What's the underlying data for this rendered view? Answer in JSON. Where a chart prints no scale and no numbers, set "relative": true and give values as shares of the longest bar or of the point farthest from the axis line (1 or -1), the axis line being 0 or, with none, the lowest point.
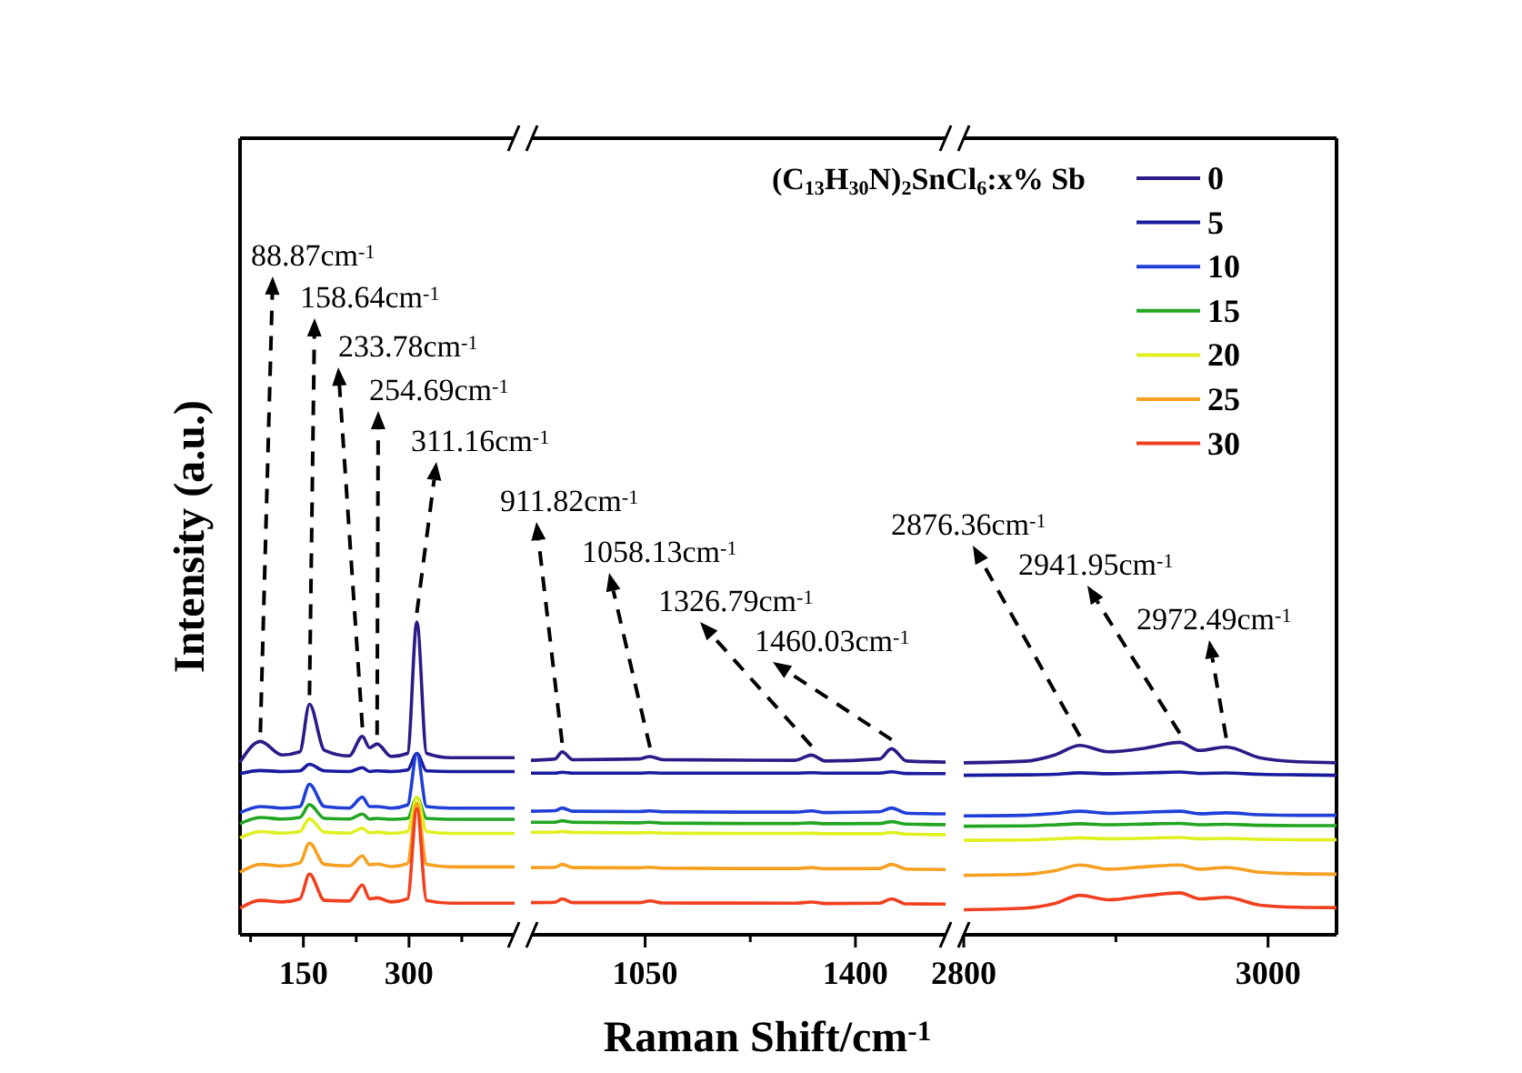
{
  "chart_data": [
    {
      "type": "line",
      "relative": true,
      "ylabel": "Intensity (a.u.)",
      "xlim": [
        60,
        450
      ],
      "xticks": [
        {
          "value": 75,
          "label": null
        },
        150,
        {
          "value": 225,
          "label": null
        },
        300,
        {
          "value": 375,
          "label": null
        }
      ],
      "x": [
        60,
        88.87,
        120,
        145,
        158.64,
        180,
        215,
        233.78,
        244,
        254.69,
        275,
        298,
        311.16,
        325,
        360,
        450
      ],
      "series": [
        {
          "color": "#2e1a87",
          "values": [
            0.552,
            0.618,
            0.575,
            0.585,
            0.737,
            0.59,
            0.572,
            0.634,
            0.598,
            0.61,
            0.57,
            0.58,
            1.0,
            0.58,
            0.566,
            0.566
          ]
        },
        {
          "color": "#1a1aa0",
          "values": [
            0.515,
            0.525,
            0.522,
            0.524,
            0.545,
            0.524,
            0.522,
            0.534,
            0.522,
            0.524,
            0.522,
            0.527,
            0.58,
            0.524,
            0.522,
            0.522
          ]
        },
        {
          "color": "#1f3fd6",
          "values": [
            0.39,
            0.41,
            0.405,
            0.41,
            0.481,
            0.41,
            0.405,
            0.44,
            0.41,
            0.41,
            0.405,
            0.415,
            0.579,
            0.41,
            0.405,
            0.405
          ]
        },
        {
          "color": "#22a622",
          "values": [
            0.355,
            0.375,
            0.37,
            0.375,
            0.416,
            0.372,
            0.37,
            0.386,
            0.37,
            0.372,
            0.369,
            0.372,
            0.439,
            0.372,
            0.369,
            0.369
          ]
        },
        {
          "color": "#e0f020",
          "values": [
            0.31,
            0.33,
            0.325,
            0.33,
            0.371,
            0.328,
            0.325,
            0.341,
            0.326,
            0.328,
            0.324,
            0.33,
            0.44,
            0.33,
            0.324,
            0.324
          ]
        },
        {
          "color": "#f5a020",
          "values": [
            0.2,
            0.225,
            0.22,
            0.23,
            0.293,
            0.225,
            0.22,
            0.252,
            0.224,
            0.226,
            0.218,
            0.228,
            0.42,
            0.225,
            0.217,
            0.217
          ]
        },
        {
          "color": "#f04020",
          "values": [
            0.085,
            0.11,
            0.105,
            0.115,
            0.194,
            0.11,
            0.108,
            0.159,
            0.115,
            0.118,
            0.105,
            0.115,
            0.403,
            0.11,
            0.101,
            0.101
          ]
        }
      ],
      "annotations": [
        {
          "text": "88.87cm$^{-1}$",
          "x": 88.87,
          "y": 0.618
        },
        {
          "text": "158.64cm$^{-1}$",
          "x": 158.64,
          "y": 0.737
        },
        {
          "text": "233.78cm$^{-1}$",
          "x": 233.78,
          "y": 0.634
        },
        {
          "text": "254.69cm$^{-1}$",
          "x": 254.69,
          "y": 0.61
        },
        {
          "text": "311.16cm$^{-1}$",
          "x": 311.16,
          "y": 1.0
        }
      ]
    },
    {
      "type": "line",
      "relative": true,
      "xlabel": "Raman Shift/cm$^{-1}$",
      "xlim": [
        860,
        1550
      ],
      "xticks": [
        1050,
        {
          "value": 1225,
          "label": null
        },
        1400
      ],
      "x": [
        860,
        900,
        911.82,
        930,
        1040,
        1058.13,
        1080,
        1300,
        1326.79,
        1350,
        1440,
        1460.03,
        1485,
        1550
      ],
      "series": [
        {
          "color": "#2e1a87",
          "values": [
            0.938,
            0.945,
            0.983,
            0.941,
            0.945,
            0.958,
            0.941,
            0.938,
            0.966,
            0.934,
            0.945,
            1.0,
            0.934,
            0.928
          ]
        },
        {
          "color": "#1a1aa0",
          "values": [
            0.869,
            0.869,
            0.874,
            0.869,
            0.869,
            0.871,
            0.869,
            0.869,
            0.871,
            0.869,
            0.869,
            0.876,
            0.867,
            0.866
          ]
        },
        {
          "color": "#1f3fd6",
          "values": [
            0.664,
            0.667,
            0.681,
            0.664,
            0.662,
            0.666,
            0.661,
            0.659,
            0.666,
            0.657,
            0.661,
            0.681,
            0.654,
            0.65
          ]
        },
        {
          "color": "#22a622",
          "values": [
            0.605,
            0.605,
            0.613,
            0.605,
            0.602,
            0.605,
            0.6,
            0.598,
            0.602,
            0.597,
            0.598,
            0.608,
            0.595,
            0.592
          ]
        },
        {
          "color": "#e0f020",
          "values": [
            0.551,
            0.551,
            0.556,
            0.55,
            0.548,
            0.55,
            0.546,
            0.545,
            0.546,
            0.543,
            0.543,
            0.55,
            0.541,
            0.538
          ]
        },
        {
          "color": "#f5a020",
          "values": [
            0.361,
            0.363,
            0.378,
            0.361,
            0.36,
            0.363,
            0.358,
            0.356,
            0.361,
            0.355,
            0.356,
            0.378,
            0.353,
            0.351
          ]
        },
        {
          "color": "#f04020",
          "values": [
            0.173,
            0.175,
            0.193,
            0.173,
            0.173,
            0.182,
            0.171,
            0.17,
            0.176,
            0.168,
            0.17,
            0.193,
            0.166,
            0.165
          ]
        }
      ],
      "annotations": [
        {
          "text": "911.82cm$^{-1}$",
          "x": 911.82,
          "y": 0.983
        },
        {
          "text": "1058.13cm$^{-1}$",
          "x": 1058.13,
          "y": 0.958
        },
        {
          "text": "1326.79cm$^{-1}$",
          "x": 1326.79,
          "y": 0.966
        },
        {
          "text": "1460.03cm$^{-1}$",
          "x": 1460.03,
          "y": 1.0
        }
      ]
    },
    {
      "type": "line",
      "relative": true,
      "legend": "top right",
      "legend_title": "(C$_{13}$H$_{30}$N)$_{2}$SnCl$_{6}$:x% Sb",
      "xlim": [
        2800,
        3045
      ],
      "xticks": [
        2800,
        {
          "value": 2900,
          "label": null
        },
        3000
      ],
      "x": [
        2800,
        2840,
        2860,
        2876.36,
        2895,
        2920,
        2941.95,
        2955,
        2972.49,
        2995,
        3020,
        3045
      ],
      "series": [
        {
          "name": "0",
          "color": "#2e1a87",
          "values": [
            0.894,
            0.902,
            0.935,
            0.984,
            0.951,
            0.971,
            1.0,
            0.958,
            0.976,
            0.919,
            0.899,
            0.894
          ]
        },
        {
          "name": "5",
          "color": "#1a1aa0",
          "values": [
            0.829,
            0.831,
            0.834,
            0.842,
            0.837,
            0.841,
            0.846,
            0.839,
            0.841,
            0.834,
            0.831,
            0.829
          ]
        },
        {
          "name": "10",
          "color": "#1f3fd6",
          "values": [
            0.618,
            0.621,
            0.631,
            0.642,
            0.631,
            0.637,
            0.642,
            0.629,
            0.634,
            0.624,
            0.621,
            0.621
          ]
        },
        {
          "name": "15",
          "color": "#22a622",
          "values": [
            0.564,
            0.566,
            0.571,
            0.577,
            0.572,
            0.576,
            0.579,
            0.572,
            0.574,
            0.569,
            0.567,
            0.567
          ]
        },
        {
          "name": "20",
          "color": "#e0f020",
          "values": [
            0.491,
            0.493,
            0.498,
            0.504,
            0.499,
            0.502,
            0.506,
            0.499,
            0.501,
            0.496,
            0.494,
            0.494
          ]
        },
        {
          "name": "25",
          "color": "#f5a020",
          "values": [
            0.309,
            0.314,
            0.333,
            0.363,
            0.341,
            0.354,
            0.363,
            0.341,
            0.35,
            0.325,
            0.317,
            0.315
          ]
        },
        {
          "name": "30",
          "color": "#f04020",
          "values": [
            0.13,
            0.138,
            0.163,
            0.205,
            0.182,
            0.203,
            0.218,
            0.187,
            0.195,
            0.154,
            0.143,
            0.141
          ]
        }
      ],
      "annotations": [
        {
          "text": "2876.36cm$^{-1}$",
          "x": 2876.36,
          "y": 0.984
        },
        {
          "text": "2941.95cm$^{-1}$",
          "x": 2941.95,
          "y": 1.0
        },
        {
          "text": "2972.49cm$^{-1}$",
          "x": 2972.49,
          "y": 0.976
        }
      ]
    }
  ]
}
